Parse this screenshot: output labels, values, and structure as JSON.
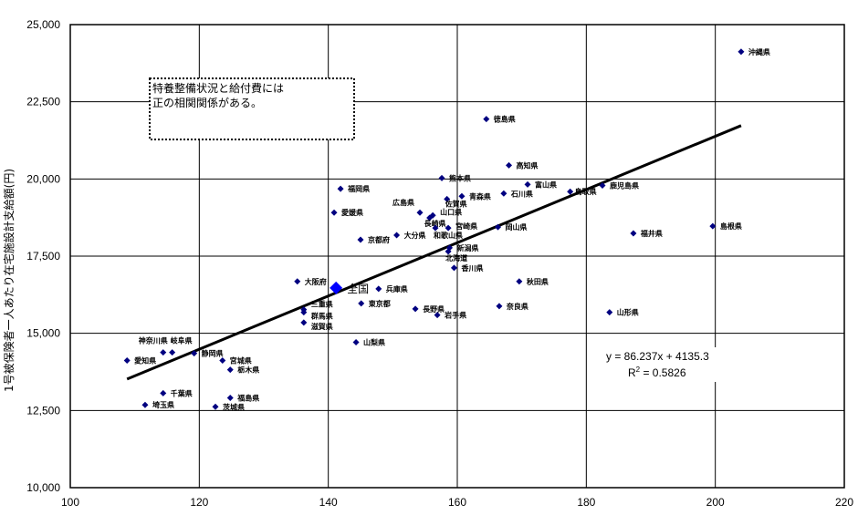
{
  "chart_data": {
    "type": "scatter",
    "title": "",
    "xlabel": "",
    "ylabel": "1号被保険者一人あたり在宅施設計支給額(円)",
    "xlim": [
      100,
      220
    ],
    "ylim": [
      10000,
      25000
    ],
    "x_ticks": [
      "100",
      "120",
      "140",
      "160",
      "180",
      "200",
      "220"
    ],
    "y_ticks": [
      "10,000",
      "12,500",
      "15,000",
      "17,500",
      "20,000",
      "22,500",
      "25,000"
    ],
    "grid": true,
    "marker_color": "#000080",
    "highlight_color": "#0000FF",
    "points": [
      {
        "label": "沖縄県",
        "x": 204.0,
        "y": 24120
      },
      {
        "label": "徳島県",
        "x": 164.5,
        "y": 21940
      },
      {
        "label": "高知県",
        "x": 168.0,
        "y": 20440
      },
      {
        "label": "富山県",
        "x": 170.9,
        "y": 19820
      },
      {
        "label": "石川県",
        "x": 167.2,
        "y": 19530
      },
      {
        "label": "鳥取県",
        "x": 177.5,
        "y": 19590
      },
      {
        "label": "鹿児島県",
        "x": 182.5,
        "y": 19790
      },
      {
        "label": "熊本県",
        "x": 157.6,
        "y": 20030
      },
      {
        "label": "青森県",
        "x": 160.7,
        "y": 19440
      },
      {
        "label": "佐賀県",
        "x": 158.4,
        "y": 19350
      },
      {
        "label": "広島県",
        "x": 154.2,
        "y": 18910
      },
      {
        "label": "山口県",
        "x": 156.2,
        "y": 18820
      },
      {
        "label": "長崎県",
        "x": 155.7,
        "y": 18740
      },
      {
        "label": "福岡県",
        "x": 141.9,
        "y": 19680
      },
      {
        "label": "愛媛県",
        "x": 140.9,
        "y": 18910
      },
      {
        "label": "京都府",
        "x": 145.0,
        "y": 18030
      },
      {
        "label": "大分県",
        "x": 150.6,
        "y": 18180
      },
      {
        "label": "宮崎県",
        "x": 158.6,
        "y": 18410
      },
      {
        "label": "和歌山県",
        "x": 156.6,
        "y": 18410
      },
      {
        "label": "岡山県",
        "x": 166.3,
        "y": 18440
      },
      {
        "label": "新潟県",
        "x": 158.8,
        "y": 17770
      },
      {
        "label": "北海道",
        "x": 158.6,
        "y": 17650
      },
      {
        "label": "香川県",
        "x": 159.5,
        "y": 17120
      },
      {
        "label": "秋田県",
        "x": 169.6,
        "y": 16680
      },
      {
        "label": "奈良県",
        "x": 166.5,
        "y": 15880
      },
      {
        "label": "岩手県",
        "x": 156.9,
        "y": 15590
      },
      {
        "label": "長野県",
        "x": 153.5,
        "y": 15790
      },
      {
        "label": "東京都",
        "x": 145.1,
        "y": 15970
      },
      {
        "label": "兵庫県",
        "x": 147.8,
        "y": 16440
      },
      {
        "label": "全国",
        "x": 141.2,
        "y": 16470,
        "highlight": true
      },
      {
        "label": "大阪府",
        "x": 135.2,
        "y": 16680
      },
      {
        "label": "三重県",
        "x": 136.2,
        "y": 15770
      },
      {
        "label": "群馬県",
        "x": 136.2,
        "y": 15680
      },
      {
        "label": "滋賀県",
        "x": 136.2,
        "y": 15350
      },
      {
        "label": "山梨県",
        "x": 144.3,
        "y": 14710
      },
      {
        "label": "山形県",
        "x": 183.6,
        "y": 15680
      },
      {
        "label": "福井県",
        "x": 187.3,
        "y": 18240
      },
      {
        "label": "島根県",
        "x": 199.6,
        "y": 18470
      },
      {
        "label": "神奈川県",
        "x": 114.4,
        "y": 14380
      },
      {
        "label": "岐阜県",
        "x": 115.8,
        "y": 14380
      },
      {
        "label": "静岡県",
        "x": 119.2,
        "y": 14350
      },
      {
        "label": "愛知県",
        "x": 108.8,
        "y": 14120
      },
      {
        "label": "宮城県",
        "x": 123.6,
        "y": 14120
      },
      {
        "label": "栃木県",
        "x": 124.8,
        "y": 13820
      },
      {
        "label": "千葉県",
        "x": 114.4,
        "y": 13060
      },
      {
        "label": "福島県",
        "x": 124.8,
        "y": 12910
      },
      {
        "label": "埼玉県",
        "x": 111.6,
        "y": 12680
      },
      {
        "label": "茨城県",
        "x": 122.5,
        "y": 12620
      }
    ],
    "trendline": {
      "slope": 86.237,
      "intercept": 4135.3,
      "x_range": [
        108.8,
        204.0
      ],
      "equation": "y = 86.237x + 4135.3",
      "r2_prefix": "R",
      "r2_sup": "2",
      "r2_value": " = 0.5826"
    },
    "annotation": {
      "line1": "特養整備状況と給付費には",
      "line2": "正の相関関係がある。"
    }
  }
}
